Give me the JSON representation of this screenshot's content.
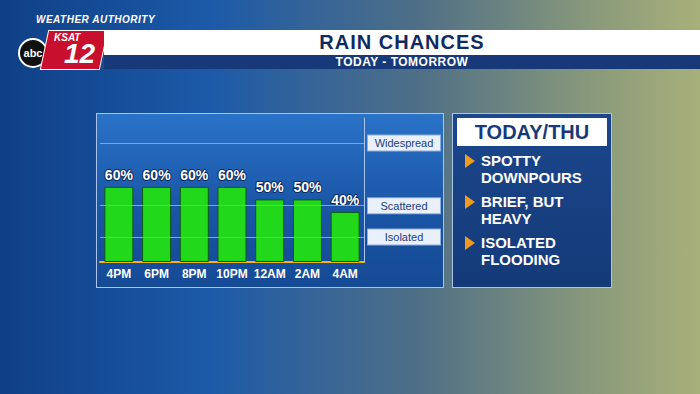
{
  "chart_data": {
    "type": "bar",
    "title": "RAIN CHANCES",
    "subtitle": "TODAY - TOMORROW",
    "categories": [
      "4PM",
      "6PM",
      "8PM",
      "10PM",
      "12AM",
      "2AM",
      "4AM"
    ],
    "values": [
      60,
      60,
      60,
      60,
      50,
      50,
      40
    ],
    "value_labels": [
      "60%",
      "60%",
      "60%",
      "60%",
      "50%",
      "50%",
      "40%"
    ],
    "data_labels": true,
    "color": "#22d81a",
    "ylim": [
      0,
      115
    ],
    "yticks": [
      {
        "value": 20,
        "label": "Isolated"
      },
      {
        "value": 45,
        "label": "Scattered"
      },
      {
        "value": 95,
        "label": "Widespread"
      }
    ],
    "grid": true,
    "annotations": {
      "brand": "WEATHER AUTHORITY",
      "station": "KSAT",
      "channel": "12",
      "network": "abc",
      "heading": "TODAY/THU",
      "bullets": [
        "SPOTTY DOWNPOURS",
        "BRIEF, BUT HEAVY",
        "ISOLATED FLOODING"
      ]
    }
  }
}
